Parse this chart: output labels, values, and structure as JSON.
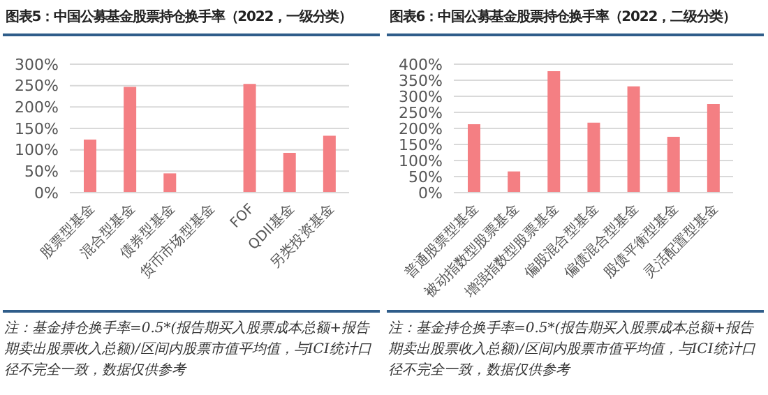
{
  "chart_data": [
    {
      "type": "bar",
      "title": "图表5：中国公募基金股票持仓换手率（2022，一级分类）",
      "categories": [
        "股票型基金",
        "混合型基金",
        "债券型基金",
        "货币市场型基金",
        "FOF",
        "QDII基金",
        "另类投资基金"
      ],
      "values": [
        124,
        247,
        45,
        0,
        254,
        93,
        133
      ],
      "color": "#f47f83",
      "ylim": [
        0,
        300
      ],
      "yticks": [
        {
          "value": 0,
          "label": "0%"
        },
        {
          "value": 50,
          "label": "50%"
        },
        {
          "value": 100,
          "label": "100%"
        },
        {
          "value": 150,
          "label": "150%"
        },
        {
          "value": 200,
          "label": "200%"
        },
        {
          "value": 250,
          "label": "250%"
        },
        {
          "value": 300,
          "label": "300%"
        }
      ],
      "grid": "y",
      "annotations": [
        "注：基金持仓换手率=0.5*(报告期买入股票成本总额+报告期卖出股票收入总额)/区间内股票市值平均值，与ICI统计口径不完全一致，数据仅供参考"
      ]
    },
    {
      "type": "bar",
      "title": "图表6：中国公募基金股票持仓换手率（2022，二级分类）",
      "categories": [
        "普通股票型基金",
        "被动指数型股票基金",
        "增强指数型股票基金",
        "偏股混合型基金",
        "偏债混合型基金",
        "股债平衡型基金",
        "灵活配置型基金"
      ],
      "values": [
        213,
        66,
        378,
        218,
        331,
        174,
        276
      ],
      "color": "#f47f83",
      "ylim": [
        0,
        400
      ],
      "yticks": [
        {
          "value": 0,
          "label": "0%"
        },
        {
          "value": 50,
          "label": "50%"
        },
        {
          "value": 100,
          "label": "100%"
        },
        {
          "value": 150,
          "label": "150%"
        },
        {
          "value": 200,
          "label": "200%"
        },
        {
          "value": 250,
          "label": "250%"
        },
        {
          "value": 300,
          "label": "300%"
        },
        {
          "value": 350,
          "label": "350%"
        },
        {
          "value": 400,
          "label": "400%"
        }
      ],
      "grid": "y",
      "annotations": [
        "注：基金持仓换手率=0.5*(报告期买入股票成本总额+报告期卖出股票收入总额)/区间内股票市值平均值，与ICI统计口径不完全一致，数据仅供参考"
      ]
    }
  ]
}
